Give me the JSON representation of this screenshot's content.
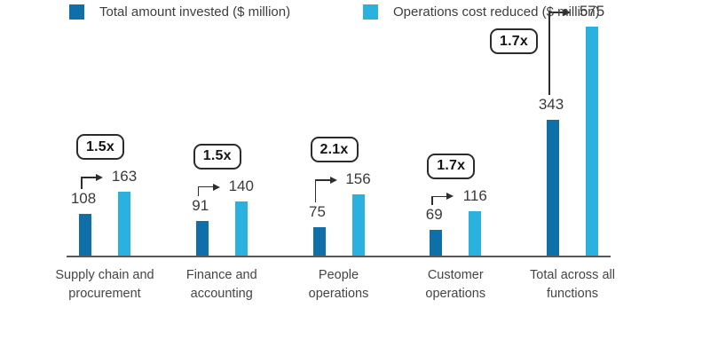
{
  "chart_data": {
    "type": "bar",
    "title": "",
    "xlabel": "",
    "ylabel": "",
    "ylim": [
      0,
      600
    ],
    "grid": false,
    "legend_position": "bottom",
    "categories": [
      "Supply chain and procurement",
      "Finance and accounting",
      "People operations",
      "Customer operations",
      "Total across all functions"
    ],
    "category_lines": [
      [
        "Supply chain and",
        "procurement"
      ],
      [
        "Finance and",
        "accounting"
      ],
      [
        "People",
        "operations"
      ],
      [
        "Customer",
        "operations"
      ],
      [
        "Total across all",
        "functions"
      ]
    ],
    "series": [
      {
        "name": "Total amount invested ($ million)",
        "color": "#0e6fa9",
        "values": [
          108,
          91,
          75,
          69,
          343
        ]
      },
      {
        "name": "Operations cost reduced ($ million)",
        "color": "#2bb1e0",
        "values": [
          163,
          140,
          156,
          116,
          575
        ]
      }
    ],
    "multiplier_labels": [
      "1.5x",
      "1.5x",
      "2.1x",
      "1.7x",
      "1.7x"
    ]
  },
  "colors": {
    "invested": "#0e6fa9",
    "reduced": "#2bb1e0",
    "axis": "#59595b",
    "annotation": "#2e2e2e"
  }
}
